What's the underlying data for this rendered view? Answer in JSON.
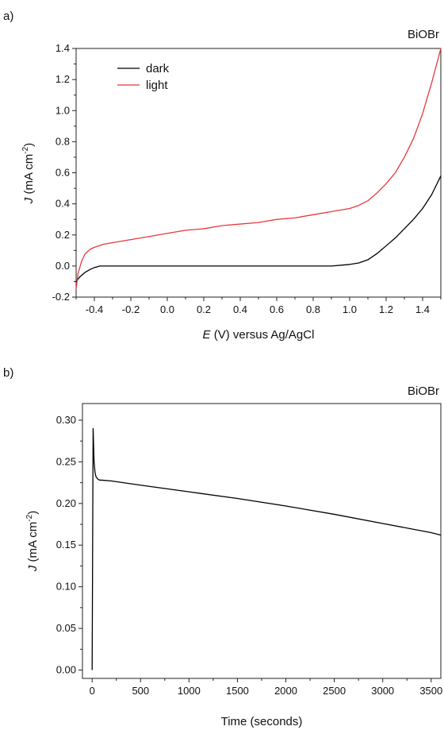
{
  "chart_data": [
    {
      "panel_label": "a)",
      "type": "line",
      "annotation": "BiOBr",
      "xlabel_italic": "E",
      "xlabel_rest": " (V) versus Ag/AgCl",
      "ylabel_italic": "J",
      "ylabel_rest": " (mA cm",
      "ylabel_sup": "-2",
      "ylabel_end": ")",
      "xlim": [
        -0.5,
        1.5
      ],
      "ylim": [
        -0.2,
        1.4
      ],
      "xticks": [
        -0.4,
        -0.2,
        0.0,
        0.2,
        0.4,
        0.6,
        0.8,
        1.0,
        1.2,
        1.4
      ],
      "xtick_labels": [
        "-0.4",
        "-0.2",
        "0.0",
        "0.2",
        "0.4",
        "0.6",
        "0.8",
        "1.0",
        "1.2",
        "1.4"
      ],
      "yticks": [
        -0.2,
        0.0,
        0.2,
        0.4,
        0.6,
        0.8,
        1.0,
        1.2,
        1.4
      ],
      "ytick_labels": [
        "-0.2",
        "0.0",
        "0.2",
        "0.4",
        "0.6",
        "0.8",
        "1.0",
        "1.2",
        "1.4"
      ],
      "legend_position": "top-left",
      "series": [
        {
          "name": "dark",
          "color": "#000000",
          "x": [
            -0.5,
            -0.48,
            -0.45,
            -0.42,
            -0.4,
            -0.37,
            -0.33,
            -0.3,
            -0.2,
            -0.1,
            0.0,
            0.2,
            0.4,
            0.6,
            0.8,
            0.9,
            1.0,
            1.05,
            1.1,
            1.15,
            1.2,
            1.25,
            1.3,
            1.35,
            1.4,
            1.45,
            1.5
          ],
          "y": [
            -0.1,
            -0.07,
            -0.04,
            -0.02,
            -0.01,
            0.0,
            0.0,
            0.0,
            0.0,
            0.0,
            0.0,
            0.0,
            0.0,
            0.0,
            0.0,
            0.0,
            0.01,
            0.02,
            0.04,
            0.08,
            0.13,
            0.18,
            0.24,
            0.3,
            0.37,
            0.46,
            0.58
          ]
        },
        {
          "name": "light",
          "color": "#e8383d",
          "x": [
            -0.5,
            -0.49,
            -0.47,
            -0.45,
            -0.42,
            -0.4,
            -0.35,
            -0.3,
            -0.2,
            -0.1,
            0.0,
            0.1,
            0.2,
            0.3,
            0.4,
            0.5,
            0.6,
            0.7,
            0.8,
            0.9,
            1.0,
            1.05,
            1.1,
            1.15,
            1.2,
            1.25,
            1.3,
            1.35,
            1.4,
            1.45,
            1.5
          ],
          "y": [
            -0.15,
            -0.05,
            0.03,
            0.08,
            0.11,
            0.12,
            0.14,
            0.15,
            0.17,
            0.19,
            0.21,
            0.23,
            0.24,
            0.26,
            0.27,
            0.28,
            0.3,
            0.31,
            0.33,
            0.35,
            0.37,
            0.39,
            0.42,
            0.47,
            0.53,
            0.6,
            0.7,
            0.82,
            0.98,
            1.18,
            1.4
          ]
        }
      ]
    },
    {
      "panel_label": "b)",
      "type": "line",
      "annotation": "BiOBr",
      "xlabel": "Time (seconds)",
      "ylabel_italic": "J",
      "ylabel_rest": " (mA cm",
      "ylabel_sup": "-2",
      "ylabel_end": ")",
      "xlim": [
        -100,
        3600
      ],
      "ylim": [
        -0.01,
        0.32
      ],
      "xticks": [
        0,
        500,
        1000,
        1500,
        2000,
        2500,
        3000,
        3500
      ],
      "xtick_labels": [
        "0",
        "500",
        "1000",
        "1500",
        "2000",
        "2500",
        "3000",
        "3500"
      ],
      "yticks": [
        0.0,
        0.05,
        0.1,
        0.15,
        0.2,
        0.25,
        0.3
      ],
      "ytick_labels": [
        "0.00",
        "0.05",
        "0.10",
        "0.15",
        "0.20",
        "0.25",
        "0.30"
      ],
      "series": [
        {
          "color": "#000000",
          "x": [
            0,
            5,
            10,
            15,
            20,
            30,
            40,
            60,
            80,
            100,
            200,
            500,
            1000,
            1500,
            2000,
            2500,
            3000,
            3500,
            3600
          ],
          "y": [
            0.0,
            0.15,
            0.29,
            0.27,
            0.25,
            0.237,
            0.232,
            0.229,
            0.228,
            0.228,
            0.227,
            0.222,
            0.214,
            0.206,
            0.197,
            0.187,
            0.176,
            0.165,
            0.162
          ]
        }
      ]
    }
  ]
}
